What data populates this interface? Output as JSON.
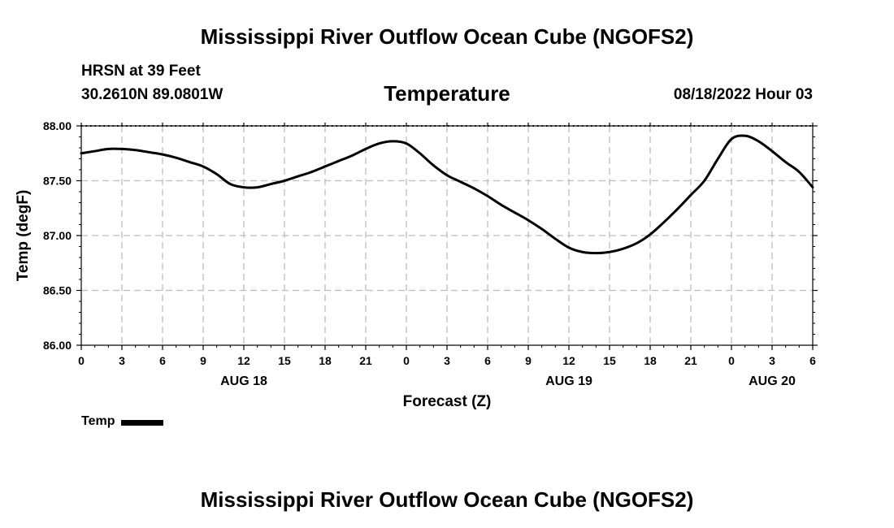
{
  "header": {
    "title": "Mississippi River Outflow Ocean Cube (NGOFS2)",
    "station": "HRSN at 39 Feet",
    "coordinates": "30.2610N  89.0801W",
    "chart_title": "Temperature",
    "datetime": "08/18/2022 Hour 03"
  },
  "footer": {
    "title": "Mississippi River Outflow Ocean Cube (NGOFS2)"
  },
  "legend": {
    "label": "Temp"
  },
  "chart_data": {
    "type": "line",
    "title": "Temperature",
    "xlabel": "Forecast (Z)",
    "ylabel": "Temp (degF)",
    "ylim": [
      86.0,
      88.0
    ],
    "xlim": [
      0,
      54
    ],
    "yticks": [
      "86.00",
      "86.50",
      "87.00",
      "87.50",
      "88.00"
    ],
    "xtick_labels": [
      "0",
      "3",
      "6",
      "9",
      "12",
      "15",
      "18",
      "21",
      "0",
      "3",
      "6",
      "9",
      "12",
      "15",
      "18",
      "21",
      "0",
      "3",
      "6"
    ],
    "date_labels": [
      {
        "text": "AUG 18",
        "hour": 12
      },
      {
        "text": "AUG 19",
        "hour": 36
      },
      {
        "text": "AUG 20",
        "hour": 51
      }
    ],
    "grid": true,
    "series": [
      {
        "name": "Temp",
        "color": "#000000",
        "x": [
          0,
          1,
          2,
          3,
          4,
          5,
          6,
          7,
          8,
          9,
          10,
          11,
          12,
          13,
          14,
          15,
          16,
          17,
          18,
          19,
          20,
          21,
          22,
          23,
          24,
          25,
          26,
          27,
          28,
          29,
          30,
          31,
          32,
          33,
          34,
          35,
          36,
          37,
          38,
          39,
          40,
          41,
          42,
          43,
          44,
          45,
          46,
          47,
          48,
          49,
          50,
          51,
          52,
          53,
          54
        ],
        "values": [
          87.75,
          87.77,
          87.79,
          87.79,
          87.78,
          87.76,
          87.74,
          87.71,
          87.67,
          87.63,
          87.56,
          87.47,
          87.44,
          87.44,
          87.47,
          87.5,
          87.54,
          87.58,
          87.63,
          87.68,
          87.73,
          87.79,
          87.84,
          87.86,
          87.84,
          87.75,
          87.64,
          87.55,
          87.49,
          87.43,
          87.36,
          87.28,
          87.21,
          87.14,
          87.06,
          86.97,
          86.89,
          86.85,
          86.84,
          86.85,
          86.88,
          86.93,
          87.01,
          87.12,
          87.24,
          87.37,
          87.5,
          87.7,
          87.88,
          87.91,
          87.86,
          87.77,
          87.67,
          87.58,
          87.44
        ]
      }
    ]
  }
}
